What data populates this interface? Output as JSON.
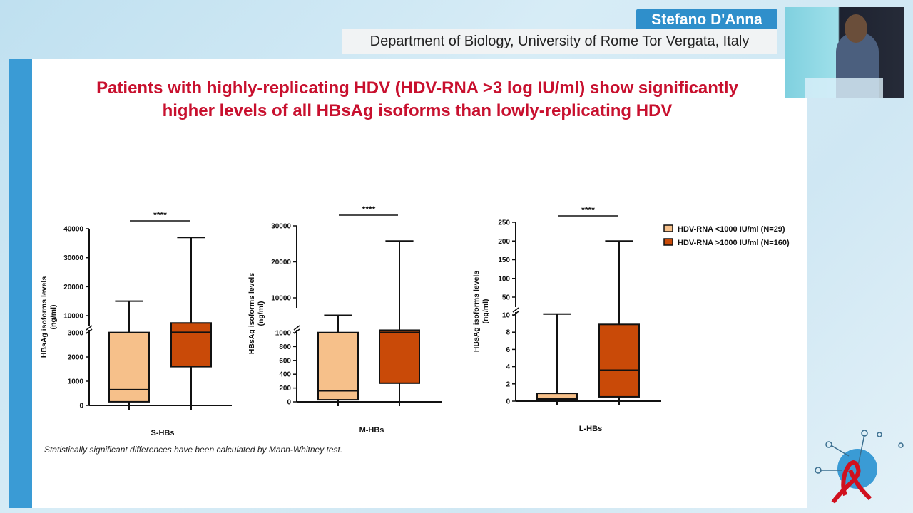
{
  "speaker": {
    "name": "Stefano D'Anna",
    "affiliation": "Department of Biology, University of Rome Tor Vergata, Italy"
  },
  "slide": {
    "title_line1": "Patients with highly-replicating HDV (HDV-RNA >3 log IU/ml) show significantly",
    "title_line2": "higher levels of all HBsAg isoforms than lowly-replicating HDV",
    "footnote": "Statistically significant differences have been calculated by Mann-Whitney test."
  },
  "legend": {
    "placement": "top-right",
    "items": [
      {
        "label": "HDV-RNA <1000 IU/ml (N=29)",
        "color": "#f6c08a"
      },
      {
        "label": "HDV-RNA >1000 IU/ml (N=160)",
        "color": "#c94a08"
      }
    ]
  },
  "chart_data": [
    {
      "type": "box",
      "xlabel": "S-HBs",
      "ylabel": "HBsAg isoforms levels (ng/ml)",
      "significance": "****",
      "broken_axis": true,
      "ylim_lower": [
        0,
        3000
      ],
      "ylim_upper": [
        10000,
        40000
      ],
      "yticks_lower": [
        0,
        1000,
        2000,
        3000
      ],
      "yticks_upper": [
        10000,
        20000,
        30000,
        40000
      ],
      "series": [
        {
          "name": "HDV-RNA <1000 IU/ml (N=29)",
          "min": 0,
          "q1": 150,
          "median": 650,
          "q3": 3100,
          "max": 15000
        },
        {
          "name": "HDV-RNA >1000 IU/ml (N=160)",
          "min": 0,
          "q1": 1600,
          "median": 3200,
          "q3": 7000,
          "max": 37000
        }
      ]
    },
    {
      "type": "box",
      "xlabel": "M-HBs",
      "ylabel": "HBsAg isoforms levels (ng/ml)",
      "significance": "****",
      "broken_axis": true,
      "ylim_lower": [
        0,
        1000
      ],
      "ylim_upper": [
        10000,
        30000
      ],
      "yticks_lower": [
        0,
        200,
        400,
        600,
        800,
        1000
      ],
      "yticks_upper": [
        10000,
        20000,
        30000
      ],
      "series": [
        {
          "name": "HDV-RNA <1000 IU/ml (N=29)",
          "min": 0,
          "q1": 30,
          "median": 160,
          "q3": 1050,
          "max": 5500
        },
        {
          "name": "HDV-RNA >1000 IU/ml (N=160)",
          "min": 0,
          "q1": 270,
          "median": 1100,
          "q3": 1650,
          "max": 25800
        }
      ]
    },
    {
      "type": "box",
      "xlabel": "L-HBs",
      "ylabel": "HBsAg isoforms levels (ng/ml)",
      "significance": "****",
      "broken_axis": true,
      "ylim_lower": [
        0,
        10
      ],
      "ylim_upper": [
        50,
        250
      ],
      "yticks_lower": [
        0,
        2,
        4,
        6,
        8,
        10
      ],
      "yticks_upper": [
        50,
        100,
        150,
        200,
        250
      ],
      "series": [
        {
          "name": "HDV-RNA <1000 IU/ml (N=29)",
          "min": 0,
          "q1": 0.1,
          "median": 0.25,
          "q3": 0.9,
          "max": 12
        },
        {
          "name": "HDV-RNA >1000 IU/ml (N=160)",
          "min": 0,
          "q1": 0.5,
          "median": 3.6,
          "q3": 8.9,
          "max": 200
        }
      ]
    }
  ]
}
